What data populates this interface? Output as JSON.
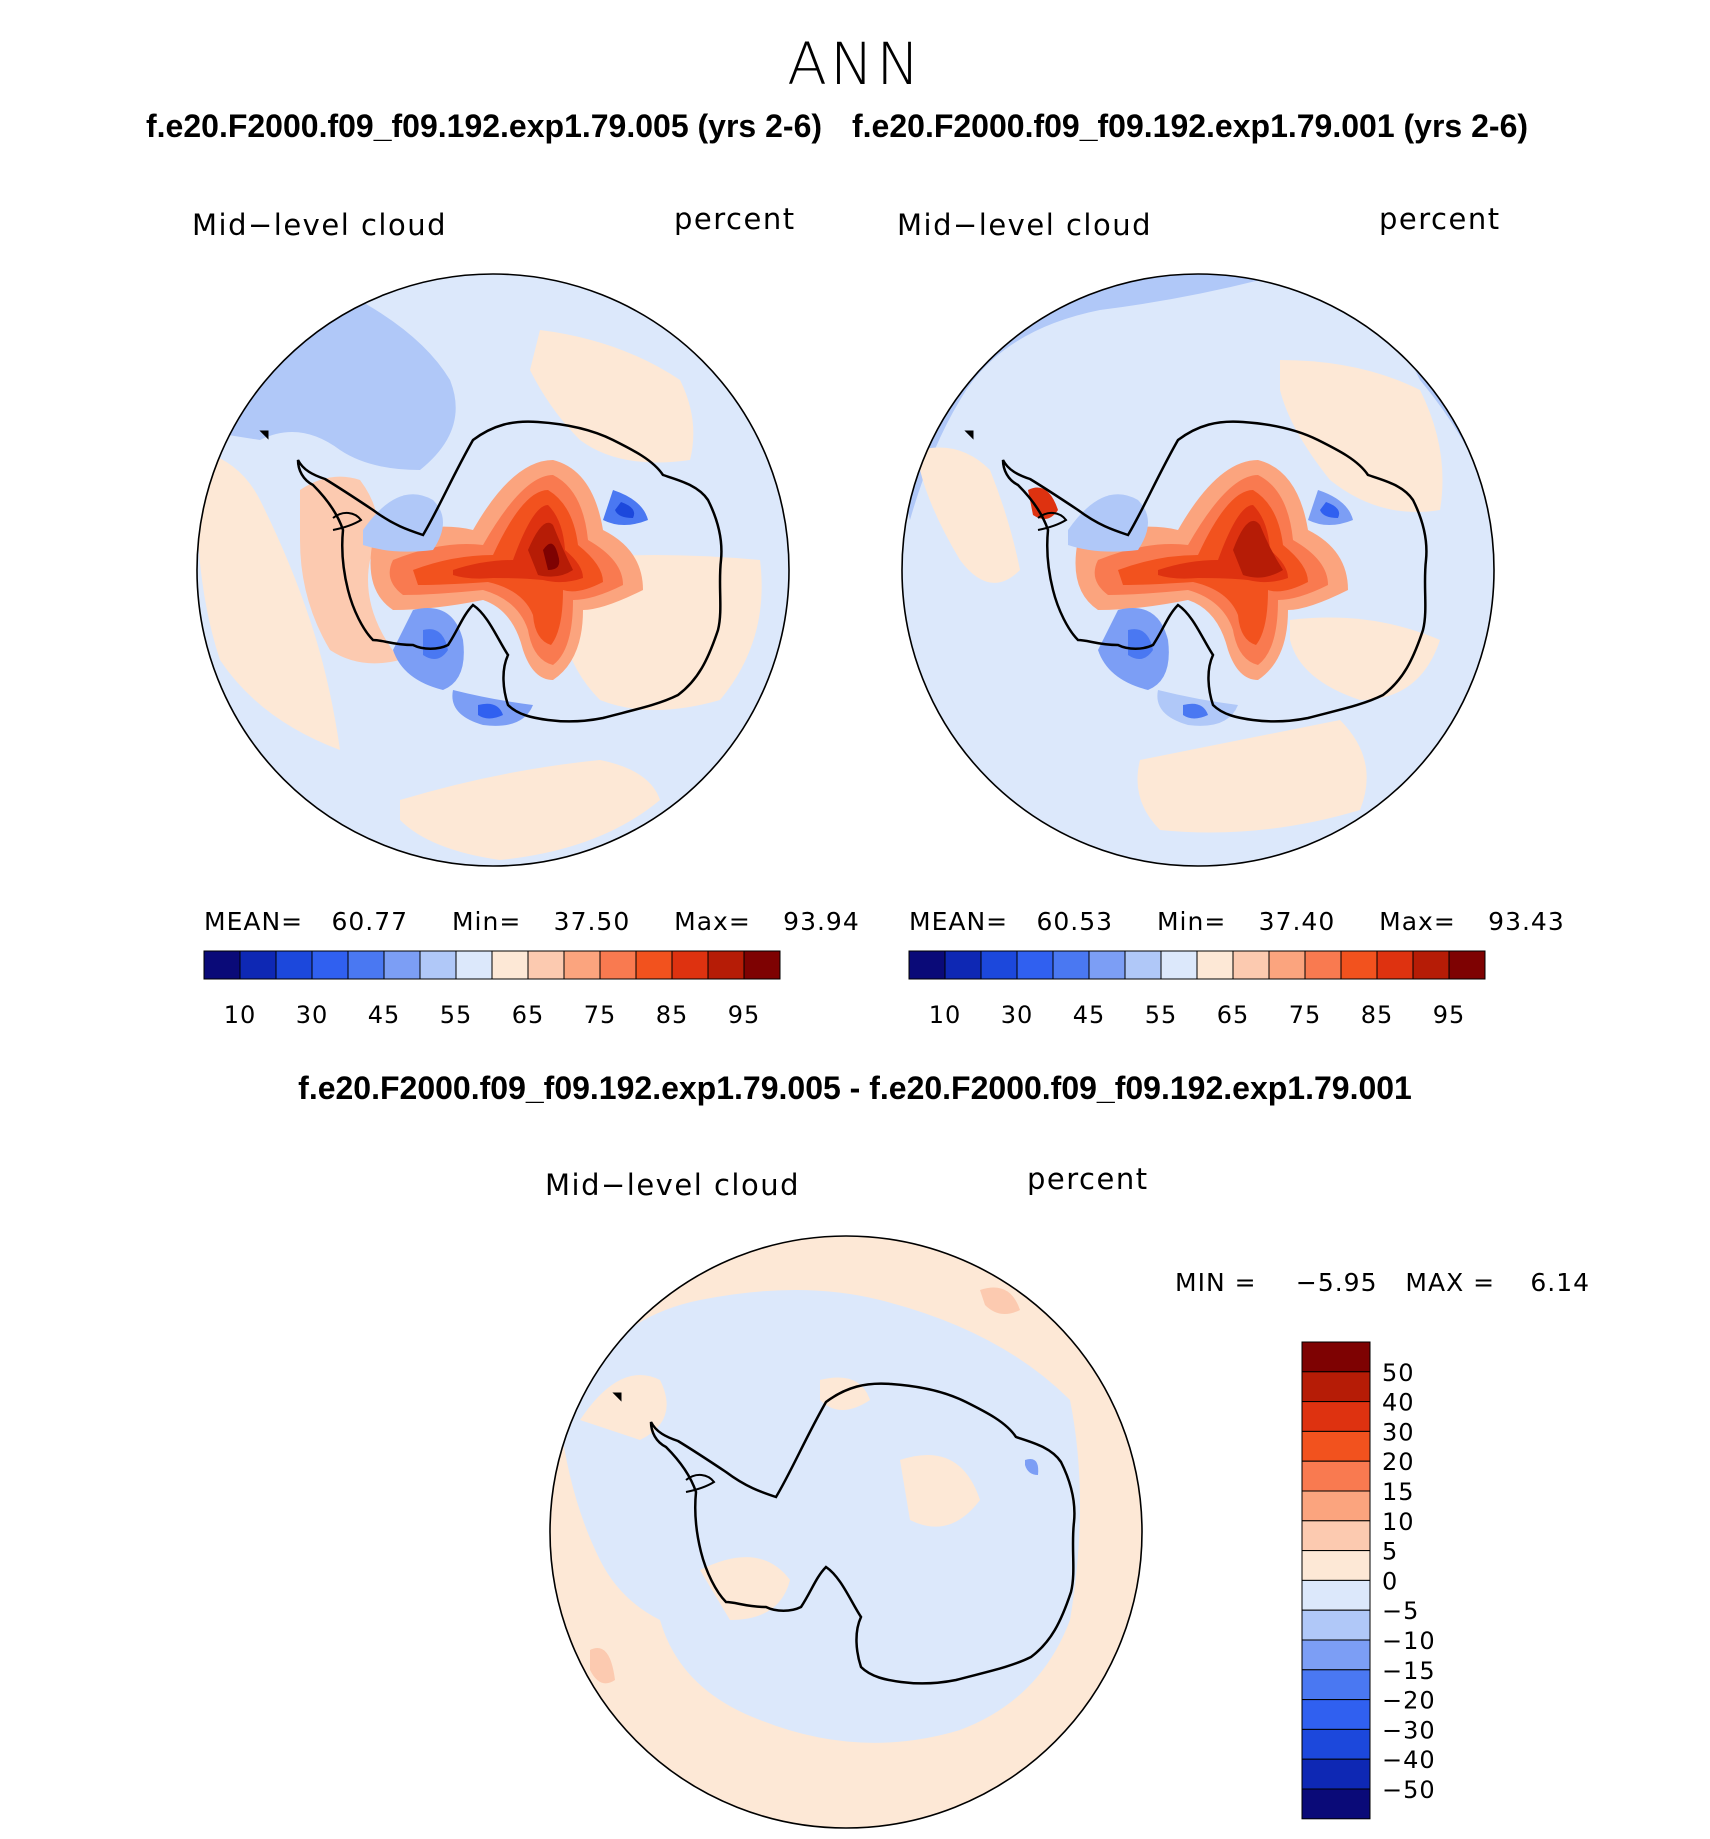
{
  "page": {
    "season": "ANN",
    "top_titles": {
      "left": "f.e20.F2000.f09_f09.192.exp1.79.005 (yrs 2-6)",
      "right": "f.e20.F2000.f09_f09.192.exp1.79.001 (yrs 2-6)"
    },
    "diff_title": "f.e20.F2000.f09_f09.192.exp1.79.005 - f.e20.F2000.f09_f09.192.exp1.79.001"
  },
  "panels": [
    {
      "variable": "Mid−level cloud",
      "units": "percent",
      "stats": {
        "mean_label": "MEAN=",
        "mean": "60.77",
        "min_label": "Min=",
        "min": "37.50",
        "max_label": "Max=",
        "max": "93.94"
      }
    },
    {
      "variable": "Mid−level cloud",
      "units": "percent",
      "stats": {
        "mean_label": "MEAN=",
        "mean": "60.53",
        "min_label": "Min=",
        "min": "37.40",
        "max_label": "Max=",
        "max": "93.43"
      }
    },
    {
      "variable": "Mid−level cloud",
      "units": "percent",
      "stats": {
        "min_label": "MIN =",
        "min": "−5.95",
        "max_label": "MAX =",
        "max": "6.14"
      }
    }
  ],
  "colorbars": {
    "abs": {
      "colors": [
        "#0a0a78",
        "#0e28b4",
        "#1c48dc",
        "#3060f0",
        "#4a78f2",
        "#7c9ef5",
        "#b0c8f8",
        "#dce8fb",
        "#fde8d6",
        "#fccab0",
        "#fba47e",
        "#f97a50",
        "#f2521e",
        "#de3210",
        "#b61c06",
        "#7e0202"
      ],
      "tick_labels": [
        "10",
        "30",
        "45",
        "55",
        "65",
        "75",
        "85",
        "95"
      ]
    },
    "diff": {
      "colors_top_to_bottom": [
        "#7e0202",
        "#b61c06",
        "#de3210",
        "#f2521e",
        "#f97a50",
        "#fba47e",
        "#fccab0",
        "#fde8d6",
        "#dce8fb",
        "#b0c8f8",
        "#7c9ef5",
        "#4a78f2",
        "#3060f0",
        "#1c48dc",
        "#0e28b4",
        "#0a0a78"
      ],
      "tick_labels": [
        "50",
        "40",
        "30",
        "20",
        "15",
        "10",
        "5",
        "0",
        "−5",
        "−10",
        "−15",
        "−20",
        "−30",
        "−40",
        "−50"
      ]
    }
  },
  "map_colors": {
    "frame": "#000000",
    "coast": "#000000",
    "c95": "#7e0202",
    "c90": "#b61c06",
    "c85": "#de3210",
    "c80": "#f2521e",
    "c75": "#f97a50",
    "c70": "#fba47e",
    "c65": "#fccab0",
    "c60": "#fde8d6",
    "c55": "#dce8fb",
    "c50": "#b0c8f8",
    "c45": "#7c9ef5",
    "c40": "#4a78f2",
    "c35": "#3060f0",
    "c30": "#1c48dc"
  }
}
